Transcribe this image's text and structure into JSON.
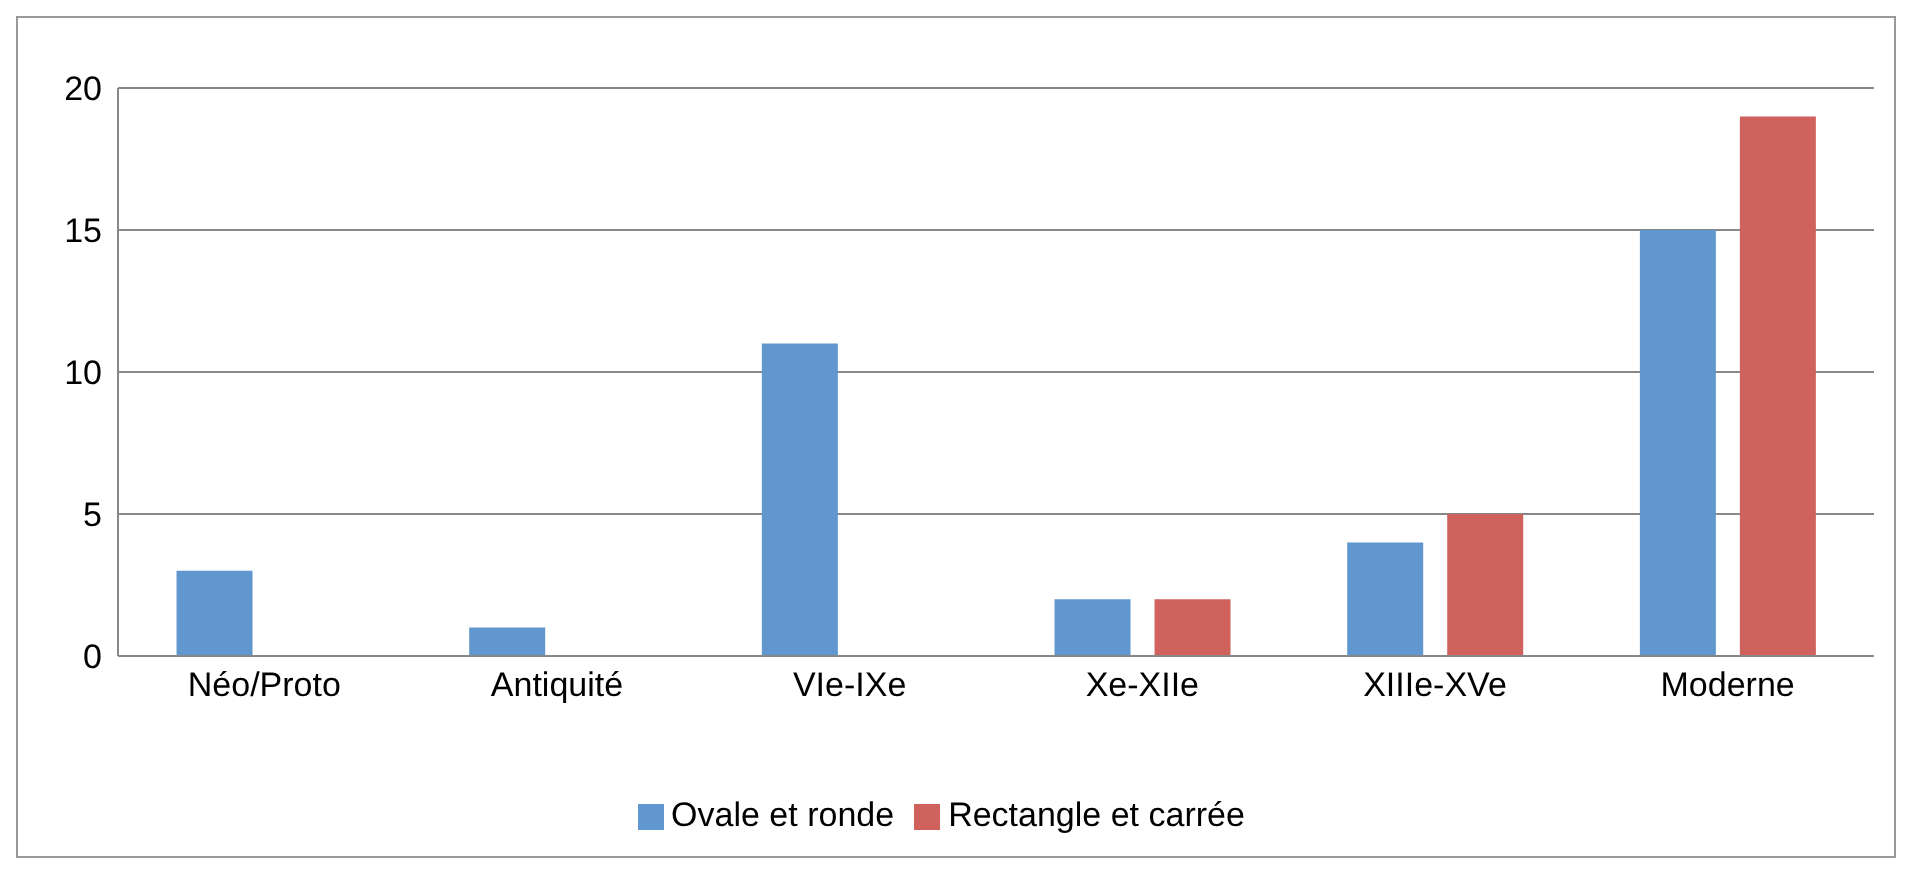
{
  "chart_data": {
    "type": "bar",
    "categories": [
      "Néo/Proto",
      "Antiquité",
      "VIe-IXe",
      "Xe-XIIe",
      "XIIIe-XVe",
      "Moderne"
    ],
    "series": [
      {
        "name": "Ovale et ronde",
        "color": "#6097ce",
        "values": [
          3,
          1,
          11,
          2,
          4,
          15
        ]
      },
      {
        "name": "Rectangle et carrée",
        "color": "#d0625e",
        "values": [
          0,
          0,
          0,
          2,
          5,
          19
        ]
      }
    ],
    "ylim": [
      0,
      20
    ],
    "yticks": [
      0,
      5,
      10,
      15,
      20
    ],
    "grid": "y",
    "legend": "bottom"
  }
}
